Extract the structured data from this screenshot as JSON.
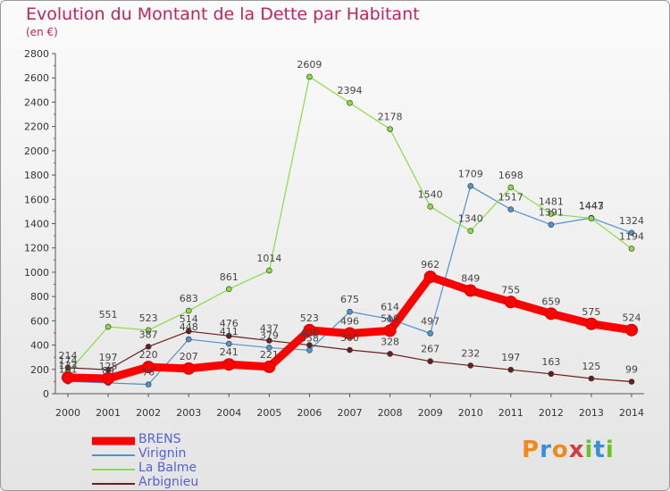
{
  "title": "Evolution du Montant de la Dette par Habitant",
  "unit": "(en €)",
  "logo": "Proxiti",
  "chart_data": {
    "type": "line",
    "x": [
      2000,
      2001,
      2002,
      2003,
      2004,
      2005,
      2006,
      2007,
      2008,
      2009,
      2010,
      2011,
      2012,
      2013,
      2014
    ],
    "ylim": [
      0,
      2800
    ],
    "yticks": [
      0,
      200,
      400,
      600,
      800,
      1000,
      1200,
      1400,
      1600,
      1800,
      2000,
      2200,
      2400,
      2600,
      2800
    ],
    "grid": false,
    "legend": "bottom-left",
    "series": [
      {
        "name": "BRENS",
        "color": "#ff0000",
        "values": [
          133,
          125,
          220,
          207,
          241,
          221,
          523,
          496,
          519,
          962,
          849,
          755,
          659,
          575,
          524
        ],
        "labels": [
          "133",
          "125",
          "220",
          "207",
          "241",
          "221",
          "523",
          "496",
          "519",
          "962",
          "849",
          "755",
          "659",
          "575",
          "524"
        ]
      },
      {
        "name": "Virignin",
        "color": "#4f93cf",
        "values": [
          101,
          89,
          76,
          448,
          411,
          379,
          358,
          675,
          614,
          497,
          1709,
          1517,
          1391,
          1447,
          1324
        ],
        "labels": [
          "101",
          "89",
          "76",
          "448",
          "411",
          "379",
          "358",
          "675",
          "614",
          "497",
          "1709",
          "1517",
          "1391",
          "1447",
          "1324"
        ]
      },
      {
        "name": "La Balme",
        "color": "#88dd44",
        "values": [
          174,
          551,
          523,
          683,
          861,
          1014,
          2609,
          2394,
          2178,
          1540,
          1340,
          1698,
          1481,
          1443,
          1194
        ],
        "labels": [
          "174",
          "551",
          "523",
          "683",
          "861",
          "1014",
          "2609",
          "2394",
          "2178",
          "1540",
          "1340",
          "1698",
          "1481",
          "1443",
          "1194"
        ]
      },
      {
        "name": "Arbignieu",
        "color": "#6b1e1e",
        "values": [
          214,
          197,
          387,
          514,
          476,
          437,
          400,
          360,
          328,
          267,
          232,
          197,
          163,
          125,
          99
        ],
        "labels": [
          "214",
          "197",
          "387",
          "514",
          "476",
          "437",
          "400",
          "360",
          "328",
          "267",
          "232",
          "197",
          "163",
          "125",
          "99"
        ]
      }
    ]
  }
}
